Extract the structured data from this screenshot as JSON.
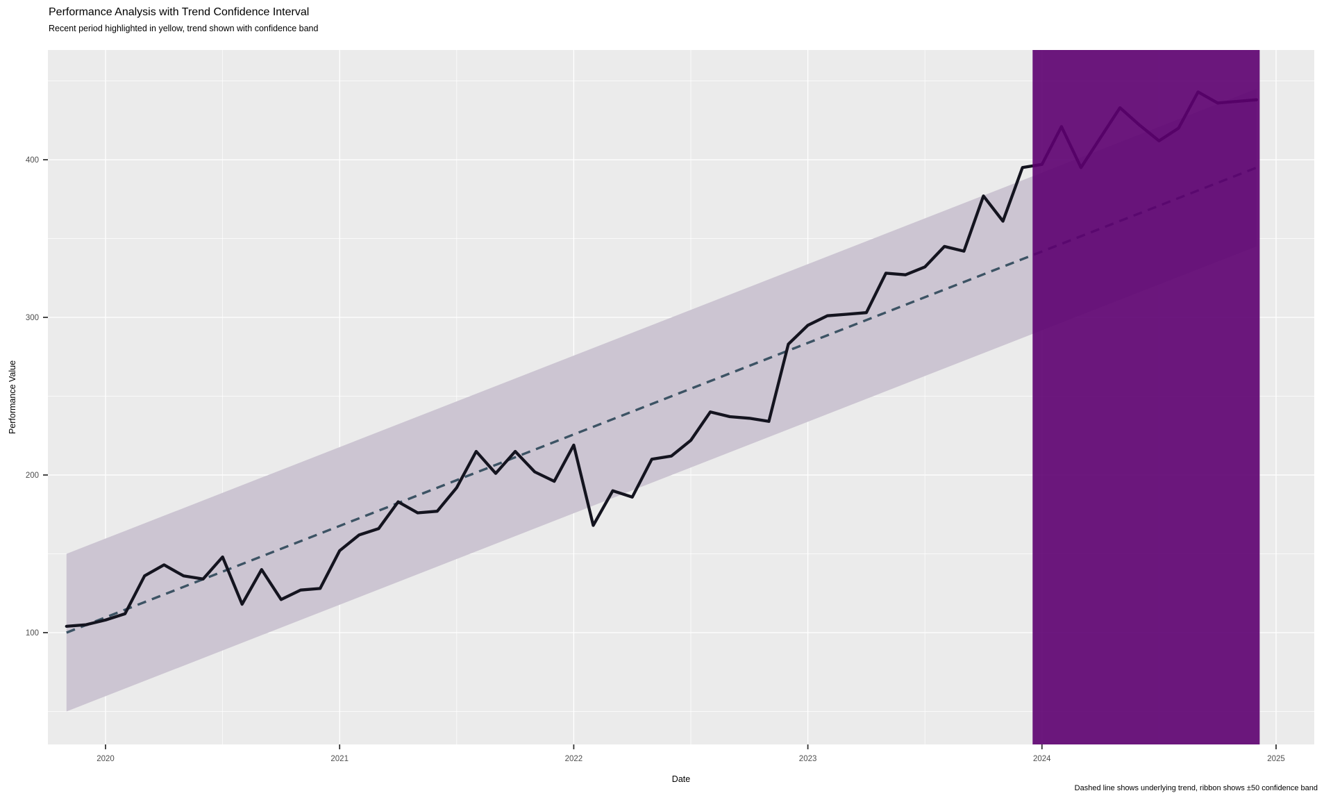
{
  "header": {
    "title": "Performance Analysis with Trend Confidence Interval",
    "subtitle": "Recent period highlighted in yellow, trend shown with confidence band",
    "caption": "Dashed line shows underlying trend, ribbon shows ±50 confidence band"
  },
  "chart_data": {
    "type": "line",
    "title": "Performance Analysis with Trend Confidence Interval",
    "subtitle": "Recent period highlighted in yellow, trend shown with confidence band",
    "caption": "Dashed line shows underlying trend, ribbon shows ±50 confidence band",
    "xlabel": "Date",
    "ylabel": "Performance Value",
    "legend": "none",
    "grid": "white major and minor gridlines on gray panel",
    "x_domain": [
      2019.75,
      2025.16
    ],
    "y_domain": [
      30,
      470
    ],
    "x_ticks": [
      2020,
      2021,
      2022,
      2023,
      2024,
      2025
    ],
    "x_tick_labels": [
      "2020",
      "2021",
      "2022",
      "2023",
      "2024",
      "2025"
    ],
    "x_minor_ticks": [
      2020.5,
      2021.5,
      2022.5,
      2023.5,
      2024.5
    ],
    "y_ticks": [
      100,
      200,
      300,
      400
    ],
    "y_tick_labels": [
      "100",
      "200",
      "300",
      "400"
    ],
    "y_minor_ticks": [
      50,
      150,
      250,
      350,
      450
    ],
    "series": [
      {
        "name": "performance",
        "type": "line",
        "color": "#14141F",
        "width": 4.3,
        "start": "2019-11",
        "interval": "monthly",
        "x_start": 2019.8333,
        "x_step": 0.0833333,
        "values": [
          104,
          105,
          108,
          112,
          136,
          143,
          136,
          134,
          148,
          118,
          140,
          121,
          127,
          128,
          152,
          162,
          166,
          183,
          176,
          177,
          192,
          215,
          201,
          215,
          202,
          196,
          219,
          168,
          190,
          186,
          210,
          212,
          222,
          240,
          237,
          236,
          234,
          283,
          295,
          301,
          302,
          303,
          328,
          327,
          332,
          345,
          342,
          377,
          361,
          395,
          397,
          421,
          395,
          414,
          433,
          422,
          412,
          420,
          443,
          436,
          437,
          438
        ]
      }
    ],
    "trend": {
      "name": "underlying-trend",
      "type": "dashed-line",
      "color": "#3C5364",
      "width": 3.4,
      "dash": [
        13,
        9
      ],
      "x": [
        2019.8333,
        2024.9167
      ],
      "y": [
        100,
        395
      ]
    },
    "ribbon": {
      "name": "confidence-band",
      "around": "underlying-trend",
      "half_width": 50,
      "color": "#CCC5D2"
    },
    "highlight": {
      "name": "recent-period-2024",
      "x_from": 2023.96,
      "x_to": 2024.93,
      "color": "#5D0070",
      "opacity": 0.9
    },
    "panel_color": "#EBEBEB",
    "grid_color": "#FFFFFF",
    "tick_mark_color": "#333333",
    "tick_label_color": "#4D4D4D"
  }
}
